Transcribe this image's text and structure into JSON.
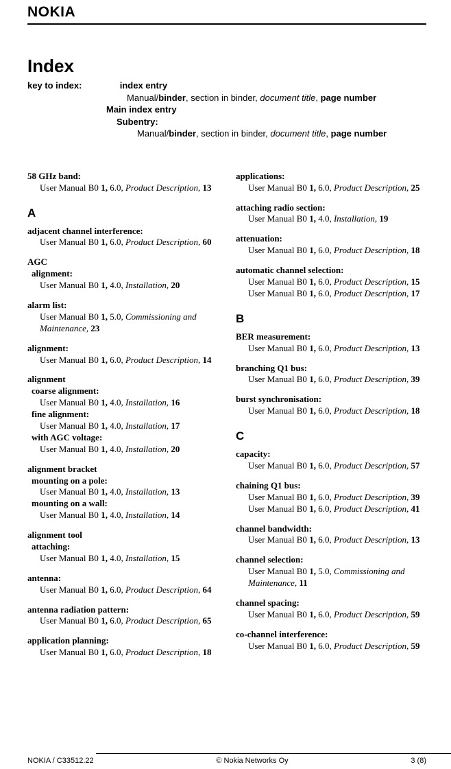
{
  "logo": "NOKIA",
  "title": "Index",
  "key": {
    "label": "key to index:",
    "l1": "index entry",
    "l2_a": "Manual/",
    "l2_b": "binder",
    "l2_c": ", section in binder, ",
    "l2_d": "document title",
    "l2_e": ", ",
    "l2_f": "page number",
    "l3": "Main index entry",
    "l4": "Subentry:",
    "l5_a": "Manual/",
    "l5_b": "binder",
    "l5_c": ", section in binder, ",
    "l5_d": "document title",
    "l5_e": ", ",
    "l5_f": "page number"
  },
  "left": [
    {
      "head": "58 GHz band:",
      "refs": [
        {
          "text": "User Manual B0 ",
          "bold": "1,",
          "mid": " 6.0, ",
          "ital": "Product Description,",
          "page": " 13"
        }
      ]
    },
    {
      "letter": "A"
    },
    {
      "head": "adjacent channel interference:",
      "refs": [
        {
          "text": "User Manual B0 ",
          "bold": "1,",
          "mid": " 6.0, ",
          "ital": "Product Description,",
          "page": " 60"
        }
      ]
    },
    {
      "head": "AGC",
      "subs": [
        {
          "sub": "alignment:",
          "refs": [
            {
              "text": "User Manual B0 ",
              "bold": "1,",
              "mid": " 4.0, ",
              "ital": "Installation,",
              "page": " 20"
            }
          ]
        }
      ]
    },
    {
      "head": "alarm list:",
      "refs": [
        {
          "text": "User Manual B0 ",
          "bold": "1,",
          "mid": " 5.0, ",
          "ital": "Commissioning and Maintenance,",
          "page": " 23"
        }
      ]
    },
    {
      "head": "alignment:",
      "refs": [
        {
          "text": "User Manual B0 ",
          "bold": "1,",
          "mid": " 6.0, ",
          "ital": "Product Description,",
          "page": " 14"
        }
      ]
    },
    {
      "head": "alignment",
      "subs": [
        {
          "sub": "coarse alignment:",
          "refs": [
            {
              "text": "User Manual B0 ",
              "bold": "1,",
              "mid": " 4.0, ",
              "ital": "Installation,",
              "page": " 16"
            }
          ]
        },
        {
          "sub": "fine alignment:",
          "refs": [
            {
              "text": "User Manual B0 ",
              "bold": "1,",
              "mid": " 4.0, ",
              "ital": "Installation,",
              "page": " 17"
            }
          ]
        },
        {
          "sub": "with AGC voltage:",
          "refs": [
            {
              "text": "User Manual B0 ",
              "bold": "1,",
              "mid": " 4.0, ",
              "ital": "Installation,",
              "page": " 20"
            }
          ]
        }
      ]
    },
    {
      "head": "alignment bracket",
      "subs": [
        {
          "sub": "mounting on a pole:",
          "refs": [
            {
              "text": "User Manual B0 ",
              "bold": "1,",
              "mid": " 4.0, ",
              "ital": "Installation,",
              "page": " 13"
            }
          ]
        },
        {
          "sub": "mounting on a wall:",
          "refs": [
            {
              "text": "User Manual B0 ",
              "bold": "1,",
              "mid": " 4.0, ",
              "ital": "Installation,",
              "page": " 14"
            }
          ]
        }
      ]
    },
    {
      "head": "alignment tool",
      "subs": [
        {
          "sub": "attaching:",
          "refs": [
            {
              "text": "User Manual B0 ",
              "bold": "1,",
              "mid": " 4.0, ",
              "ital": "Installation,",
              "page": " 15"
            }
          ]
        }
      ]
    },
    {
      "head": "antenna:",
      "refs": [
        {
          "text": "User Manual B0 ",
          "bold": "1,",
          "mid": " 6.0, ",
          "ital": "Product Description,",
          "page": " 64"
        }
      ]
    },
    {
      "head": "antenna radiation pattern:",
      "refs": [
        {
          "text": "User Manual B0 ",
          "bold": "1,",
          "mid": " 6.0, ",
          "ital": "Product Description,",
          "page": " 65"
        }
      ]
    },
    {
      "head": "application planning:",
      "refs": [
        {
          "text": "User Manual B0 ",
          "bold": "1,",
          "mid": " 6.0, ",
          "ital": "Product Description,",
          "page": " 18"
        }
      ]
    }
  ],
  "right": [
    {
      "head": "applications:",
      "refs": [
        {
          "text": "User Manual B0 ",
          "bold": "1,",
          "mid": " 6.0, ",
          "ital": "Product Description,",
          "page": " 25"
        }
      ]
    },
    {
      "head": "attaching radio section:",
      "refs": [
        {
          "text": "User Manual B0 ",
          "bold": "1,",
          "mid": " 4.0, ",
          "ital": "Installation,",
          "page": " 19"
        }
      ]
    },
    {
      "head": "attenuation:",
      "refs": [
        {
          "text": "User Manual B0 ",
          "bold": "1,",
          "mid": " 6.0, ",
          "ital": "Product Description,",
          "page": " 18"
        }
      ]
    },
    {
      "head": "automatic channel selection:",
      "refs": [
        {
          "text": "User Manual B0 ",
          "bold": "1,",
          "mid": " 6.0, ",
          "ital": "Product Description,",
          "page": " 15"
        },
        {
          "text": "User Manual B0 ",
          "bold": "1,",
          "mid": " 6.0, ",
          "ital": "Product Description,",
          "page": " 17"
        }
      ]
    },
    {
      "letter": "B"
    },
    {
      "head": "BER measurement:",
      "refs": [
        {
          "text": "User Manual B0 ",
          "bold": "1,",
          "mid": " 6.0, ",
          "ital": "Product Description,",
          "page": " 13"
        }
      ]
    },
    {
      "head": "branching Q1 bus:",
      "refs": [
        {
          "text": "User Manual B0 ",
          "bold": "1,",
          "mid": " 6.0, ",
          "ital": "Product Description,",
          "page": " 39"
        }
      ]
    },
    {
      "head": "burst synchronisation:",
      "refs": [
        {
          "text": "User Manual B0 ",
          "bold": "1,",
          "mid": " 6.0, ",
          "ital": "Product Description,",
          "page": " 18"
        }
      ]
    },
    {
      "letter": "C"
    },
    {
      "head": "capacity:",
      "refs": [
        {
          "text": "User Manual B0 ",
          "bold": "1,",
          "mid": " 6.0, ",
          "ital": "Product Description,",
          "page": " 57"
        }
      ]
    },
    {
      "head": "chaining Q1 bus:",
      "refs": [
        {
          "text": "User Manual B0 ",
          "bold": "1,",
          "mid": " 6.0, ",
          "ital": "Product Description,",
          "page": " 39"
        },
        {
          "text": "User Manual B0 ",
          "bold": "1,",
          "mid": " 6.0, ",
          "ital": "Product Description,",
          "page": " 41"
        }
      ]
    },
    {
      "head": "channel bandwidth:",
      "refs": [
        {
          "text": "User Manual B0 ",
          "bold": "1,",
          "mid": " 6.0, ",
          "ital": "Product Description,",
          "page": " 13"
        }
      ]
    },
    {
      "head": "channel selection:",
      "refs": [
        {
          "text": "User Manual B0 ",
          "bold": "1,",
          "mid": " 5.0, ",
          "ital": "Commissioning and Maintenance,",
          "page": " 11"
        }
      ]
    },
    {
      "head": "channel spacing:",
      "refs": [
        {
          "text": "User Manual B0 ",
          "bold": "1,",
          "mid": " 6.0, ",
          "ital": "Product Description,",
          "page": " 59"
        }
      ]
    },
    {
      "head": "co-channel interference:",
      "refs": [
        {
          "text": "User Manual B0 ",
          "bold": "1,",
          "mid": " 6.0, ",
          "ital": "Product Description,",
          "page": " 59"
        }
      ]
    }
  ],
  "footer": {
    "left": "NOKIA / C33512.22",
    "center": "© Nokia Networks Oy",
    "right": "3 (8)"
  }
}
